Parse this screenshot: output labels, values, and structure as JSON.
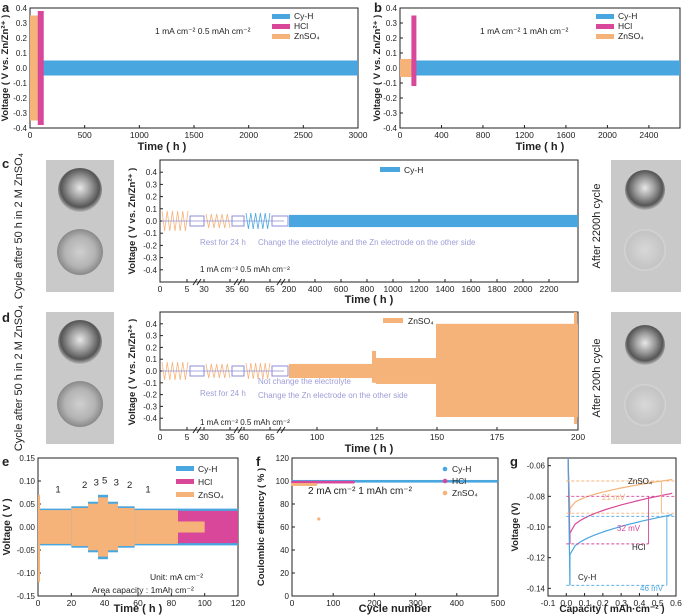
{
  "colors": {
    "cyh": "#4aa6de",
    "hcl": "#d8479a",
    "znso4": "#f5b37a",
    "dash_blue": "#4aa6de",
    "dash_pink": "#d8479a",
    "dash_orange": "#f5b37a",
    "vio": "#8c8cd6"
  },
  "legend": {
    "cyh": "Cy-H",
    "hcl": "HCl",
    "znso4": "ZnSO₄"
  },
  "ylabel_v": "Voltage ( V vs. Zn/Zn²⁺ )",
  "xlabel_time": "Time ( h )",
  "panels": {
    "a": {
      "letter": "a",
      "condition": "1 mA cm⁻² 0.5 mAh cm⁻²"
    },
    "b": {
      "letter": "b",
      "condition": "1 mA cm⁻² 1 mAh cm⁻²"
    },
    "c": {
      "letter": "c",
      "left_photo_caption": "Cycle after 50 h in 2 M ZnSO₄",
      "right_photo_caption": "After 2200h cycle",
      "rest": "Rest for 24 h",
      "change": "Change the electrolyte and the Zn electrode on the other side",
      "condition": "1 mA cm⁻² 0.5 mAh cm⁻²"
    },
    "d": {
      "letter": "d",
      "left_photo_caption": "Cycle after 50 h in 2 M ZnSO₄",
      "right_photo_caption": "After 200h cycle",
      "rest": "Rest for 24 h",
      "not_change": "Not change the electrolyte",
      "change_zn": "Change the Zn electrode on the other side",
      "condition": "1 mA cm⁻² 0.5 mAh cm⁻²"
    },
    "e": {
      "letter": "e",
      "unit": "Unit: mA cm⁻²",
      "area": "Area capacity : 1mAh cm⁻²",
      "ylabel": "Voltage ( V )",
      "xlabel": "Time ( h )"
    },
    "f": {
      "letter": "f",
      "condition": "2 mA cm⁻² 1 mAh cm⁻²",
      "ylabel": "Coulombic efficiency ( % )",
      "xlabel": "Cycle number"
    },
    "g": {
      "letter": "g",
      "ylabel": "Voltage (V)",
      "xlabel": "Capacity ( mAh·cm⁻² )",
      "znso4": "ZnSO₄",
      "hcl": "HCl",
      "cyh": "Cy-H",
      "mv_znso4": "21 mV",
      "mv_hcl": "32 mV",
      "mv_cyh": "46 mV"
    }
  },
  "chart_data": [
    {
      "type": "line",
      "panel": "a",
      "title": "1 mA cm⁻² 0.5 mAh cm⁻²",
      "xlabel": "Time ( h )",
      "ylabel": "Voltage ( V vs. Zn/Zn²⁺ )",
      "xlim": [
        0,
        3000
      ],
      "ylim": [
        -0.4,
        0.4
      ],
      "xticks": [
        "0",
        "500",
        "1000",
        "1500",
        "2000",
        "2500",
        "3000"
      ],
      "yticks": [
        "-0.4",
        "-0.3",
        "-0.2",
        "-0.1",
        "0.0",
        "0.1",
        "0.2",
        "0.3",
        "0.4"
      ],
      "series": [
        {
          "name": "Cy-H",
          "amplitude": 0.05,
          "x_range": [
            0,
            3000
          ]
        },
        {
          "name": "HCl",
          "amplitude": 0.38,
          "failure_at": 90
        },
        {
          "name": "ZnSO₄",
          "amplitude": 0.35,
          "failure_at": 80
        }
      ]
    },
    {
      "type": "line",
      "panel": "b",
      "title": "1 mA cm⁻² 1 mAh cm⁻²",
      "xlabel": "Time ( h )",
      "ylabel": "Voltage ( V vs. Zn/Zn²⁺ )",
      "xlim": [
        0,
        2700
      ],
      "ylim": [
        -0.4,
        0.4
      ],
      "xticks": [
        "0",
        "400",
        "800",
        "1200",
        "1600",
        "2000",
        "2400"
      ],
      "yticks": [
        "-0.4",
        "-0.3",
        "-0.2",
        "-0.1",
        "0.0",
        "0.1",
        "0.2",
        "0.3",
        "0.4"
      ],
      "series": [
        {
          "name": "Cy-H",
          "amplitude": 0.05,
          "x_range": [
            0,
            2700
          ]
        },
        {
          "name": "HCl",
          "amplitude": 0.35,
          "failure_at": 130
        },
        {
          "name": "ZnSO₄",
          "amplitude": 0.06,
          "failure_at": 110
        }
      ]
    },
    {
      "type": "line",
      "panel": "c",
      "xlabel": "Time ( h )",
      "ylabel": "Voltage ( V vs. Zn/Zn²⁺ )",
      "ylim": [
        -0.5,
        0.5
      ],
      "xticks": [
        "0",
        "5",
        "30",
        "35",
        "60",
        "65",
        "200",
        "400",
        "600",
        "800",
        "1000",
        "1200",
        "1400",
        "1600",
        "1800",
        "2000",
        "2200"
      ],
      "yticks": [
        "-0.4",
        "-0.3",
        "-0.2",
        "-0.1",
        "0.0",
        "0.1",
        "0.2",
        "0.3",
        "0.4"
      ],
      "series": [
        {
          "name": "Cy-H",
          "amplitude": 0.05
        }
      ]
    },
    {
      "type": "line",
      "panel": "d",
      "xlabel": "Time ( h )",
      "ylabel": "Voltage ( V vs. Zn/Zn²⁺ )",
      "ylim": [
        -0.5,
        0.5
      ],
      "xticks": [
        "0",
        "5",
        "30",
        "35",
        "60",
        "65",
        "100",
        "125",
        "150",
        "175",
        "200"
      ],
      "yticks": [
        "-0.4",
        "-0.3",
        "-0.2",
        "-0.1",
        "0.0",
        "0.1",
        "0.2",
        "0.3",
        "0.4"
      ],
      "series": [
        {
          "name": "ZnSO₄",
          "amplitude_range": [
            0.05,
            0.4
          ]
        }
      ]
    },
    {
      "type": "line",
      "panel": "e",
      "xlabel": "Time ( h )",
      "ylabel": "Voltage ( V )",
      "xlim": [
        0,
        120
      ],
      "ylim": [
        -0.15,
        0.15
      ],
      "xticks": [
        "0",
        "20",
        "40",
        "60",
        "80",
        "100",
        "120"
      ],
      "yticks": [
        "-0.15",
        "-0.10",
        "-0.05",
        "0.00",
        "0.05",
        "0.10",
        "0.15"
      ],
      "rate_labels": [
        "1",
        "2",
        "3",
        "5",
        "3",
        "2",
        "1"
      ],
      "series": [
        {
          "name": "Cy-H"
        },
        {
          "name": "HCl"
        },
        {
          "name": "ZnSO₄"
        }
      ]
    },
    {
      "type": "scatter",
      "panel": "f",
      "xlabel": "Cycle number",
      "ylabel": "Coulombic efficiency ( % )",
      "xlim": [
        0,
        500
      ],
      "ylim": [
        0,
        120
      ],
      "xticks": [
        "0",
        "100",
        "200",
        "300",
        "400",
        "500"
      ],
      "yticks": [
        "0",
        "20",
        "40",
        "60",
        "80",
        "100",
        "120"
      ],
      "series": [
        {
          "name": "Cy-H",
          "value": 99.8,
          "cycles": 500
        },
        {
          "name": "HCl",
          "value": 99,
          "cycles": 150
        },
        {
          "name": "ZnSO₄",
          "value": 97,
          "cycles": 60,
          "outlier": {
            "x": 65,
            "y": 67
          }
        }
      ]
    },
    {
      "type": "line",
      "panel": "g",
      "xlabel": "Capacity ( mAh·cm⁻² )",
      "ylabel": "Voltage (V)",
      "xlim": [
        -0.1,
        0.6
      ],
      "ylim": [
        -0.145,
        -0.055
      ],
      "xticks": [
        "-0.1",
        "0.0",
        "0.1",
        "0.2",
        "0.3",
        "0.4",
        "0.5",
        "0.6"
      ],
      "yticks": [
        "-0.14",
        "-0.12",
        "-0.10",
        "-0.08",
        "-0.06"
      ],
      "series": [
        {
          "name": "ZnSO₄",
          "nucleation_overpotential_mV": 21
        },
        {
          "name": "HCl",
          "nucleation_overpotential_mV": 32
        },
        {
          "name": "Cy-H",
          "nucleation_overpotential_mV": 46
        }
      ]
    }
  ]
}
